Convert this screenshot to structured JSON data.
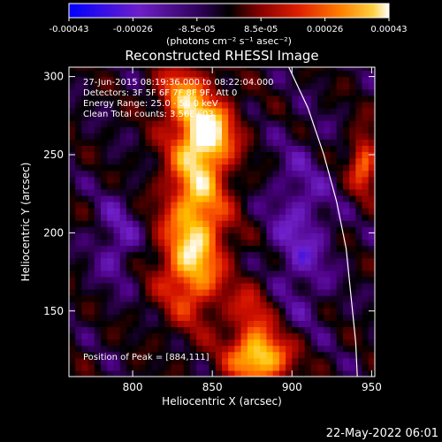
{
  "chart_data": {
    "type": "heatmap",
    "title": "Reconstructed RHESSI Image",
    "xlabel": "Heliocentric X (arcsec)",
    "ylabel": "Heliocentric Y (arcsec)",
    "xlim": [
      760,
      952
    ],
    "ylim": [
      108,
      306
    ],
    "x_ticks": [
      800,
      850,
      900,
      950
    ],
    "y_ticks": [
      150,
      200,
      250,
      300
    ],
    "colorbar": {
      "ticks": [
        "-0.00043",
        "-0.00026",
        "-8.5e-05",
        "8.5e-05",
        "0.00026",
        "0.00043"
      ],
      "range": [
        -0.00043,
        0.00043
      ],
      "unit_label": "(photons cm⁻² s⁻¹ asec⁻²)",
      "colormap": [
        "#0000ff",
        "#7020c8",
        "#4a0080",
        "#000000",
        "#7a0000",
        "#d01000",
        "#ff6000",
        "#ffc000",
        "#ffffff"
      ]
    },
    "annotations": [
      "27-Jun-2015 08:19:36.000 to 08:22:04.000",
      "Detectors: 3F 5F 6F 7F 8F 9F, Att 0",
      "Energy Range: 25.0 - 50.0 keV",
      "Clean    Total counts: 3.56E+03"
    ],
    "peak_label": "Position of Peak = [884,111]",
    "peak": [
      884,
      111
    ],
    "limb_curve": [
      [
        898,
        306
      ],
      [
        910,
        280
      ],
      [
        920,
        250
      ],
      [
        928,
        220
      ],
      [
        934,
        190
      ],
      [
        937,
        160
      ],
      [
        940,
        130
      ],
      [
        941,
        108
      ]
    ]
  },
  "footer": {
    "timestamp": "22-May-2022 06:01"
  }
}
